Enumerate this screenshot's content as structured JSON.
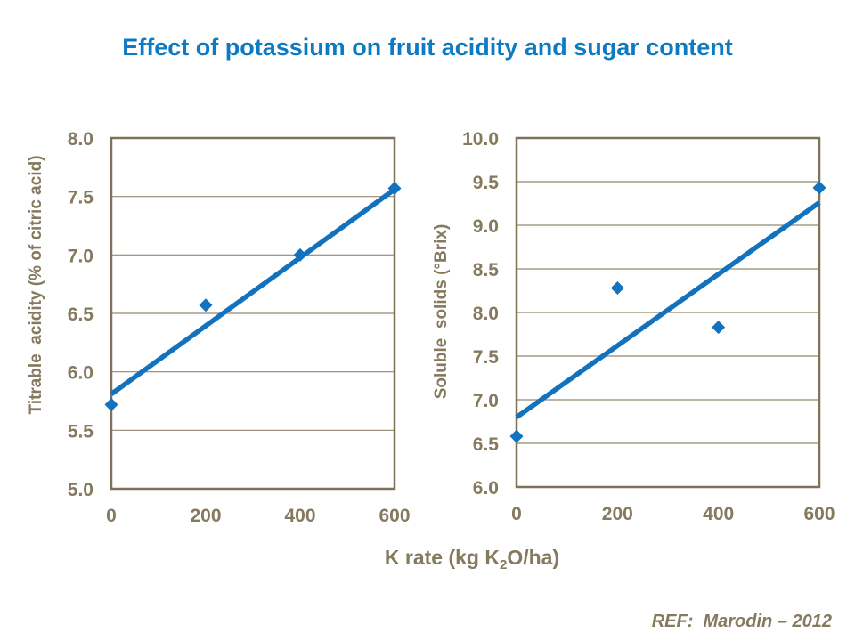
{
  "slide": {
    "title": "Effect of potassium on fruit acidity and sugar content",
    "reference": "REF:  Marodin – 2012",
    "x_axis_title": {
      "prefix": "K rate (kg K",
      "subscript": "2",
      "suffix": "O/ha)"
    }
  },
  "colors": {
    "title_blue": "#0E7AC4",
    "series_blue": "#1272BD",
    "axis_text_brown": "#85795E",
    "grid_line_brown": "#93876F",
    "plot_border_brown": "#7E7259",
    "background": "#FFFFFF"
  },
  "chart_data": [
    {
      "type": "scatter",
      "name": "titrable-acidity-vs-k-rate",
      "title": "",
      "xlabel": "K rate (kg K2O/ha)",
      "ylabel": "Titrable  acidity (% of citric acid)",
      "x": [
        0,
        200,
        400,
        600
      ],
      "y": [
        5.72,
        6.57,
        7.0,
        7.57
      ],
      "trendline": {
        "x": [
          0,
          600
        ],
        "y": [
          5.81,
          7.56
        ]
      },
      "xlim": [
        0,
        600
      ],
      "ylim": [
        5.0,
        8.0
      ],
      "xtick_labels": [
        "0",
        "200",
        "400",
        "600"
      ],
      "ytick_labels": [
        "5.0",
        "5.5",
        "6.0",
        "6.5",
        "7.0",
        "7.5",
        "8.0"
      ],
      "grid": "horizontal",
      "legend": "none",
      "marker": "diamond"
    },
    {
      "type": "scatter",
      "name": "soluble-solids-vs-k-rate",
      "title": "",
      "xlabel": "K rate (kg K2O/ha)",
      "ylabel": "Soluble  solids (°Brix)",
      "x": [
        0,
        200,
        400,
        600
      ],
      "y": [
        6.58,
        8.28,
        7.83,
        9.43
      ],
      "trendline": {
        "x": [
          0,
          600
        ],
        "y": [
          6.8,
          9.26
        ]
      },
      "xlim": [
        0,
        600
      ],
      "ylim": [
        6.0,
        10.0
      ],
      "xtick_labels": [
        "0",
        "200",
        "400",
        "600"
      ],
      "ytick_labels": [
        "6.0",
        "6.5",
        "7.0",
        "7.5",
        "8.0",
        "8.5",
        "9.0",
        "9.5",
        "10.0"
      ],
      "grid": "horizontal",
      "legend": "none",
      "marker": "diamond"
    }
  ]
}
